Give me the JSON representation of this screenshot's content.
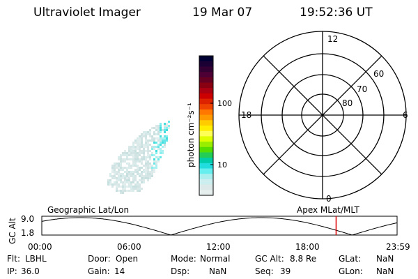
{
  "header": {
    "instrument": "Ultraviolet Imager",
    "date": "19 Mar 07",
    "time": "19:52:36 UT"
  },
  "colorbar": {
    "label": "photon cm⁻²s⁻¹",
    "ticks": [
      "100",
      "10"
    ],
    "colors": [
      "#000033",
      "#1a0033",
      "#330033",
      "#4d0033",
      "#660022",
      "#880011",
      "#aa0011",
      "#cc0000",
      "#dd2200",
      "#ee4400",
      "#ff7700",
      "#ff9900",
      "#ffcc00",
      "#ffee00",
      "#ffff55",
      "#ddff00",
      "#99ee00",
      "#55dd00",
      "#22cc55",
      "#00ccaa",
      "#22dddd",
      "#66eeee",
      "#aaeeee",
      "#cceeee",
      "#dde8e8",
      "#e6eeee"
    ]
  },
  "polar": {
    "mlt_labels": {
      "top": "12",
      "left": "18",
      "right": "6",
      "bottom": "0"
    },
    "lat_labels": [
      "60",
      "70",
      "80"
    ]
  },
  "timeline": {
    "axis_title": "GC Alt",
    "y_ticks": [
      "9.0",
      "1.8"
    ],
    "left_label": "Geographic Lat/Lon",
    "right_label": "Apex  MLat/MLT",
    "x_ticks": [
      "00:00",
      "06:00",
      "12:00",
      "18:00",
      "23:59"
    ],
    "current_time_hours": 19.88,
    "marker_color": "#dd0000"
  },
  "status": {
    "row1": [
      {
        "key": "Flt:",
        "value": "LBHL"
      },
      {
        "key": "Door:",
        "value": "Open"
      },
      {
        "key": "Mode:",
        "value": "Normal"
      },
      {
        "key": "GC Alt:",
        "value": "8.8 Re"
      },
      {
        "key": "GLat:",
        "value": "NaN"
      }
    ],
    "row2": [
      {
        "key": "IP:",
        "value": "36.0"
      },
      {
        "key": "Gain:",
        "value": "14"
      },
      {
        "key": "Dsp:",
        "value": "NaN"
      },
      {
        "key": "Seq:",
        "value": "39"
      },
      {
        "key": "GLon:",
        "value": "NaN"
      }
    ]
  }
}
